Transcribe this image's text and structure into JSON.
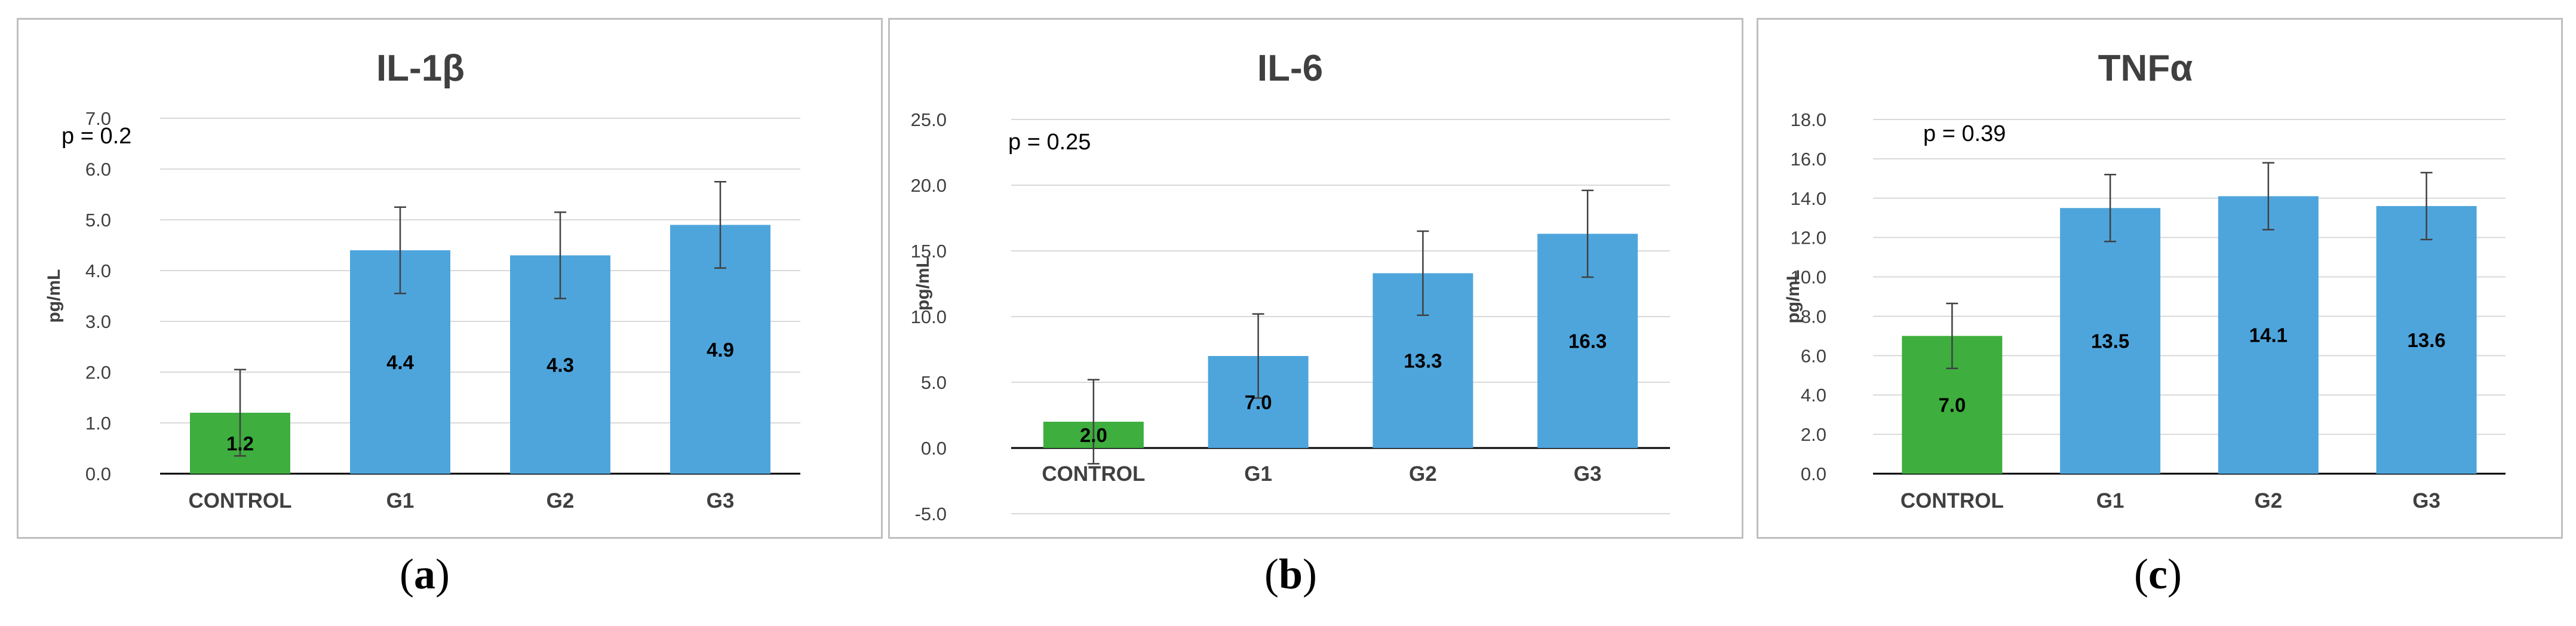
{
  "colors": {
    "control": "#3EAE3E",
    "group": "#4EA5DC",
    "grid": "#D9D9D9",
    "axis": "#000000",
    "text": "#404040",
    "errorbar": "#404040"
  },
  "chart_data": [
    {
      "type": "bar",
      "title": "IL-1β",
      "ylabel": "pg/mL",
      "xlabel": "",
      "p_value": "p = 0.2",
      "categories": [
        "CONTROL",
        "G1",
        "G2",
        "G3"
      ],
      "values": [
        1.2,
        4.4,
        4.3,
        4.9
      ],
      "value_labels": [
        "1.2",
        "4.4",
        "4.3",
        "4.9"
      ],
      "errors": [
        0.85,
        0.85,
        0.85,
        0.85
      ],
      "ylim": [
        0,
        7
      ],
      "yticks": [
        0,
        1,
        2,
        3,
        4,
        5,
        6,
        7
      ],
      "ytick_labels": [
        "0.0",
        "1.0",
        "2.0",
        "3.0",
        "4.0",
        "5.0",
        "6.0",
        "7.0"
      ],
      "bar_colors": [
        "#3EAE3E",
        "#4EA5DC",
        "#4EA5DC",
        "#4EA5DC"
      ],
      "caption": "(a)",
      "caption_letter": "a"
    },
    {
      "type": "bar",
      "title": "IL-6",
      "ylabel": "pg/mL",
      "xlabel": "",
      "p_value": "p = 0.25",
      "categories": [
        "CONTROL",
        "G1",
        "G2",
        "G3"
      ],
      "values": [
        2.0,
        7.0,
        13.3,
        16.3
      ],
      "value_labels": [
        "2.0",
        "7.0",
        "13.3",
        "16.3"
      ],
      "errors": [
        3.2,
        3.2,
        3.2,
        3.3
      ],
      "ylim": [
        -5,
        25
      ],
      "yticks": [
        -5,
        0,
        5,
        10,
        15,
        20,
        25
      ],
      "ytick_labels": [
        "-5.0",
        "0.0",
        "5.0",
        "10.0",
        "15.0",
        "20.0",
        "25.0"
      ],
      "bar_colors": [
        "#3EAE3E",
        "#4EA5DC",
        "#4EA5DC",
        "#4EA5DC"
      ],
      "caption": "(b)",
      "caption_letter": "b"
    },
    {
      "type": "bar",
      "title": "TNFα",
      "ylabel": "pg/mL",
      "xlabel": "",
      "p_value": "p = 0.39",
      "categories": [
        "CONTROL",
        "G1",
        "G2",
        "G3"
      ],
      "values": [
        7.0,
        13.5,
        14.1,
        13.6
      ],
      "value_labels": [
        "7.0",
        "13.5",
        "14.1",
        "13.6"
      ],
      "errors": [
        1.65,
        1.7,
        1.7,
        1.7
      ],
      "ylim": [
        0,
        18
      ],
      "yticks": [
        0,
        2,
        4,
        6,
        8,
        10,
        12,
        14,
        16,
        18
      ],
      "ytick_labels": [
        "0.0",
        "2.0",
        "4.0",
        "6.0",
        "8.0",
        "10.0",
        "12.0",
        "14.0",
        "16.0",
        "18.0"
      ],
      "bar_colors": [
        "#3EAE3E",
        "#4EA5DC",
        "#4EA5DC",
        "#4EA5DC"
      ],
      "caption": "(c)",
      "caption_letter": "c"
    }
  ]
}
